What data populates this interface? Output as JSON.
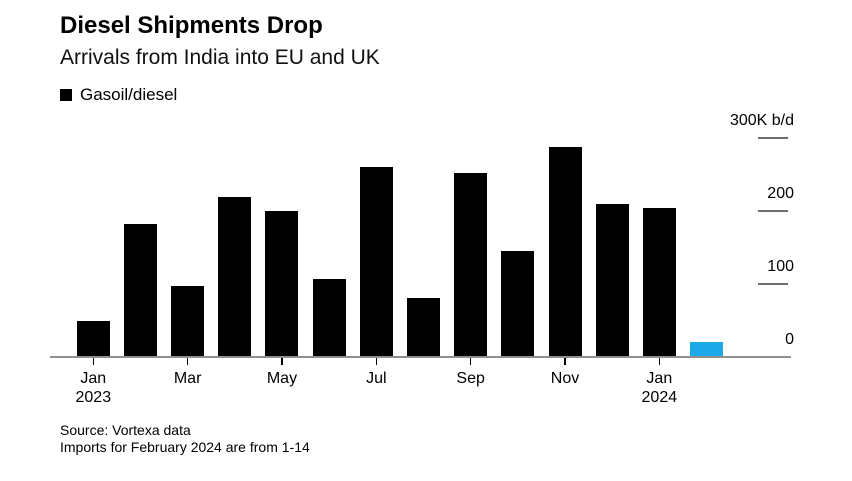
{
  "header": {
    "title": "Diesel Shipments Drop",
    "subtitle": "Arrivals from India into EU and UK"
  },
  "legend": {
    "label": "Gasoil/diesel",
    "swatch_color": "#000000"
  },
  "chart_data": {
    "type": "bar",
    "title": "Diesel Shipments Drop",
    "subtitle": "Arrivals from India into EU and UK",
    "series_name": "Gasoil/diesel",
    "unit": "K b/d",
    "categories": [
      "Jan 2023",
      "Feb 2023",
      "Mar 2023",
      "Apr 2023",
      "May 2023",
      "Jun 2023",
      "Jul 2023",
      "Aug 2023",
      "Sep 2023",
      "Oct 2023",
      "Nov 2023",
      "Dec 2023",
      "Jan 2024",
      "Feb 2024"
    ],
    "values": [
      50,
      183,
      98,
      220,
      200,
      107,
      260,
      81,
      252,
      145,
      288,
      210,
      205,
      20
    ],
    "bar_color": "#000000",
    "highlight_color": "#1ca9e8",
    "highlight_index": 13,
    "ylim": [
      0,
      300
    ],
    "yticks": [
      {
        "label": "300K b/d",
        "value": 300
      },
      {
        "label": "200",
        "value": 200
      },
      {
        "label": "100",
        "value": 100
      },
      {
        "label": "0",
        "value": 0
      }
    ],
    "xticks": [
      {
        "line1": "Jan",
        "line2": "2023",
        "month_index": 0
      },
      {
        "line1": "Mar",
        "line2": "",
        "month_index": 2
      },
      {
        "line1": "May",
        "line2": "",
        "month_index": 4
      },
      {
        "line1": "Jul",
        "line2": "",
        "month_index": 6
      },
      {
        "line1": "Sep",
        "line2": "",
        "month_index": 8
      },
      {
        "line1": "Nov",
        "line2": "",
        "month_index": 10
      },
      {
        "line1": "Jan",
        "line2": "2024",
        "month_index": 12
      }
    ],
    "grid": "off",
    "yaxis_position": "right",
    "legend_position": "top-left"
  },
  "footer": {
    "source": "Source: Vortexa data",
    "note": "Imports for February 2024 are from 1-14"
  }
}
